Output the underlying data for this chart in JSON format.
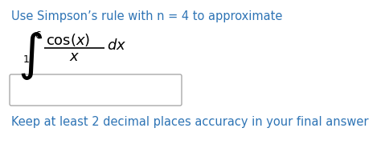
{
  "title_text": "Use Simpson’s rule with n = 4 to approximate",
  "title_color": "#2e74b5",
  "title_fontsize": 10.5,
  "footer_text": "Keep at least 2 decimal places accuracy in your final answer",
  "footer_color": "#2e74b5",
  "footer_fontsize": 10.5,
  "bg_color": "#ffffff",
  "integral_fontsize": 32,
  "math_fontsize": 13,
  "limit_fontsize": 9,
  "box_color": "#aaaaaa"
}
